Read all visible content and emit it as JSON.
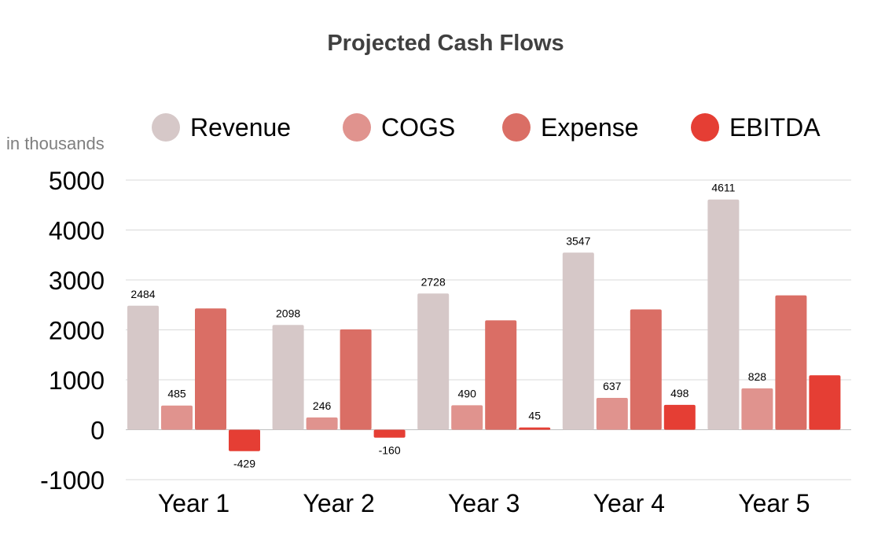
{
  "chart_data": {
    "type": "bar",
    "title": "Projected Cash Flows",
    "ylabel": "in thousands",
    "xlabel": "",
    "categories": [
      "Year 1",
      "Year 2",
      "Year 3",
      "Year 4",
      "Year 5"
    ],
    "ylim": [
      -1000,
      5000
    ],
    "yticks": [
      5000,
      4000,
      3000,
      2000,
      1000,
      0,
      -1000
    ],
    "grid": true,
    "legend_position": "top",
    "series": [
      {
        "name": "Revenue",
        "color": "#d6c8c8",
        "values": [
          2484,
          2098,
          2728,
          3547,
          4611
        ],
        "labels": [
          "2484",
          "2098",
          "2728",
          "3547",
          "4611"
        ]
      },
      {
        "name": "COGS",
        "color": "#e0938e",
        "values": [
          485,
          246,
          490,
          637,
          828
        ],
        "labels": [
          "485",
          "246",
          "490",
          "637",
          "828"
        ]
      },
      {
        "name": "Expense",
        "color": "#da6e65",
        "values": [
          2430,
          2010,
          2190,
          2410,
          2690
        ],
        "labels": [
          "",
          "",
          "",
          "",
          ""
        ]
      },
      {
        "name": "EBITDA",
        "color": "#e53e34",
        "values": [
          -429,
          -160,
          45,
          498,
          1090
        ],
        "labels": [
          "-429",
          "-160",
          "45",
          "498",
          ""
        ]
      }
    ]
  }
}
